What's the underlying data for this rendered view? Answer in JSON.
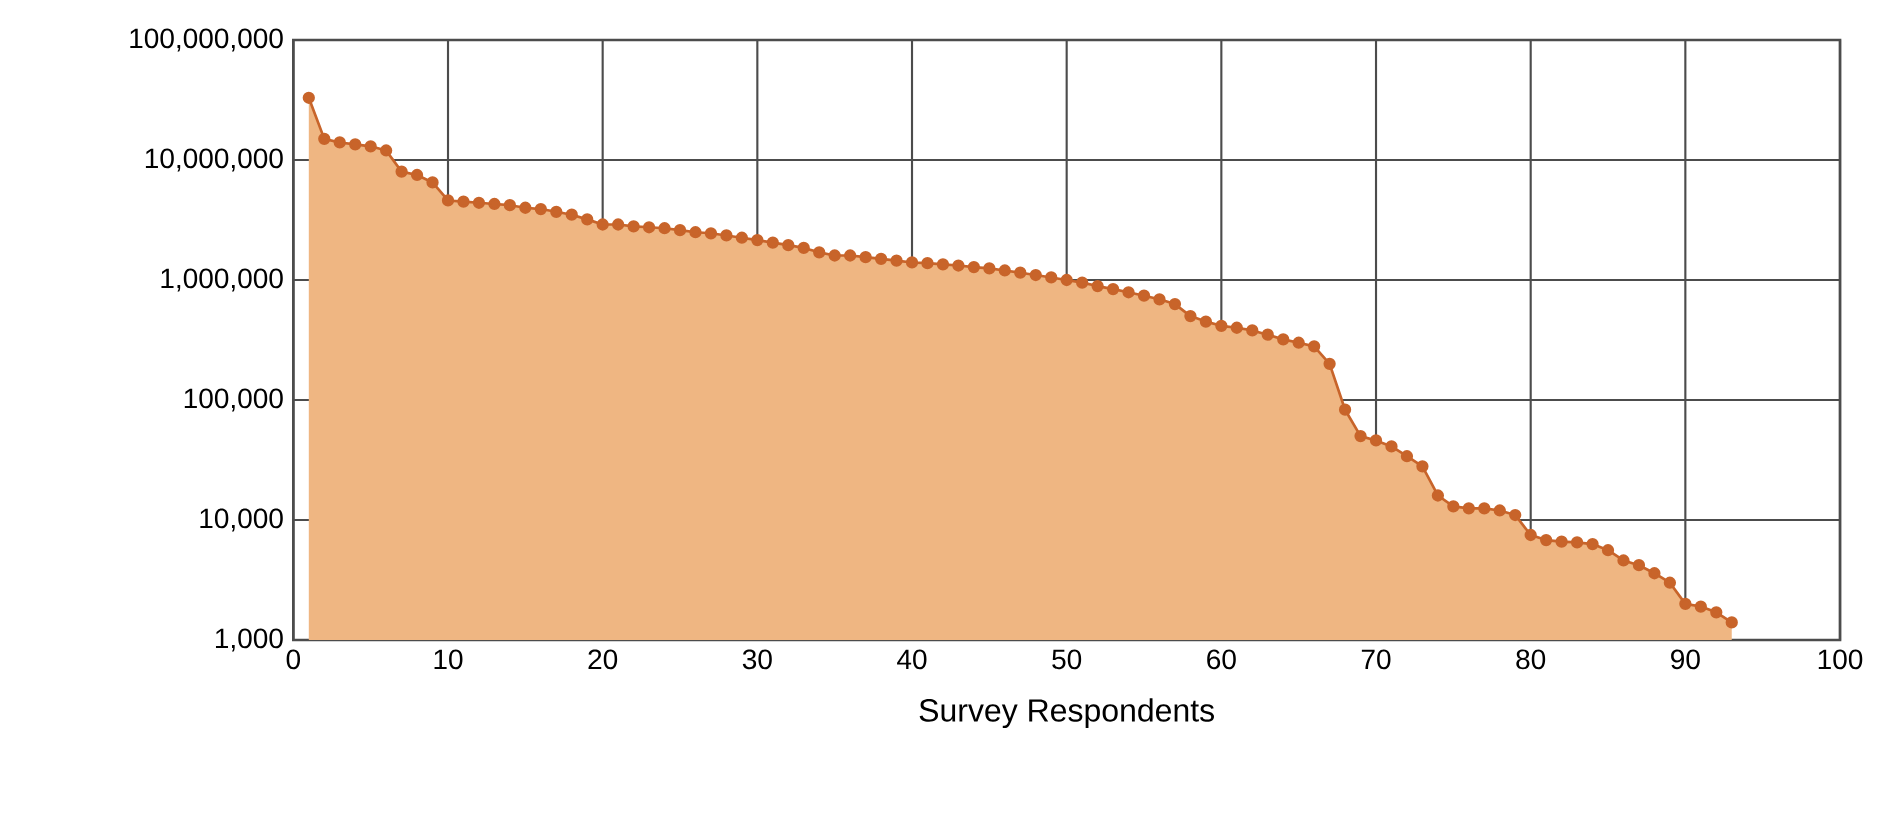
{
  "chart_data": {
    "type": "area",
    "xlabel": "Survey Respondents",
    "x": [
      1,
      2,
      3,
      4,
      5,
      6,
      7,
      8,
      9,
      10,
      11,
      12,
      13,
      14,
      15,
      16,
      17,
      18,
      19,
      20,
      21,
      22,
      23,
      24,
      25,
      26,
      27,
      28,
      29,
      30,
      31,
      32,
      33,
      34,
      35,
      36,
      37,
      38,
      39,
      40,
      41,
      42,
      43,
      44,
      45,
      46,
      47,
      48,
      49,
      50,
      51,
      52,
      53,
      54,
      55,
      56,
      57,
      58,
      59,
      60,
      61,
      62,
      63,
      64,
      65,
      66,
      67,
      68,
      69,
      70,
      71,
      72,
      73,
      74,
      75,
      76,
      77,
      78,
      79,
      80,
      81,
      82,
      83,
      84,
      85,
      86,
      87,
      88,
      89,
      90,
      91,
      92,
      93
    ],
    "values": [
      33000000,
      15000000,
      14000000,
      13500000,
      13000000,
      12000000,
      8000000,
      7500000,
      6500000,
      4600000,
      4500000,
      4400000,
      4300000,
      4200000,
      4000000,
      3900000,
      3700000,
      3500000,
      3200000,
      2900000,
      2900000,
      2800000,
      2750000,
      2700000,
      2600000,
      2500000,
      2450000,
      2350000,
      2250000,
      2150000,
      2050000,
      1950000,
      1850000,
      1700000,
      1600000,
      1600000,
      1550000,
      1500000,
      1450000,
      1400000,
      1380000,
      1350000,
      1320000,
      1280000,
      1250000,
      1200000,
      1150000,
      1100000,
      1050000,
      1000000,
      950000,
      890000,
      840000,
      790000,
      740000,
      690000,
      630000,
      500000,
      450000,
      415000,
      400000,
      380000,
      350000,
      320000,
      300000,
      280000,
      200000,
      83000,
      50000,
      46000,
      41000,
      34000,
      28000,
      16000,
      13000,
      12500,
      12500,
      12000,
      11000,
      7500,
      6800,
      6600,
      6500,
      6300,
      5600,
      4600,
      4200,
      3600,
      3000,
      2000,
      1900,
      1700,
      1400
    ],
    "color": "#c8642a",
    "log": "y",
    "grid": true,
    "marker": "circle",
    "xlim": [
      0,
      100
    ],
    "xticks": [
      0,
      10,
      20,
      30,
      40,
      50,
      60,
      70,
      80,
      90,
      100
    ],
    "ylim": [
      1000,
      100000000
    ],
    "yticks": [
      {
        "value": 1000,
        "label": "1,000"
      },
      {
        "value": 10000,
        "label": "10,000"
      },
      {
        "value": 100000,
        "label": "100,000"
      },
      {
        "value": 1000000,
        "label": "1,000,000"
      },
      {
        "value": 10000000,
        "label": "10,000,000"
      },
      {
        "value": 100000000,
        "label": "100,000,000"
      }
    ]
  }
}
